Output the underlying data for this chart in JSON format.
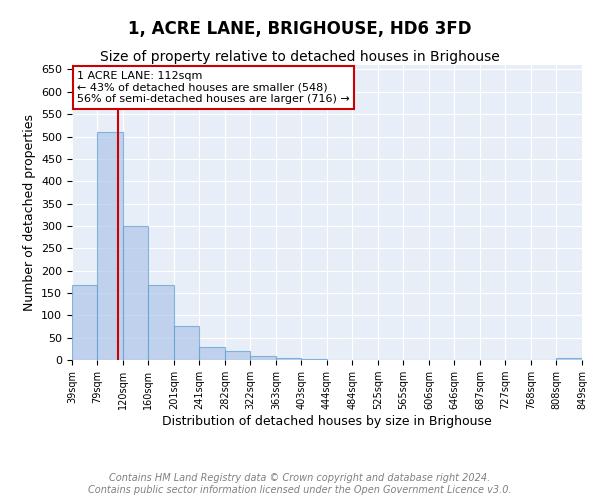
{
  "title": "1, ACRE LANE, BRIGHOUSE, HD6 3FD",
  "subtitle": "Size of property relative to detached houses in Brighouse",
  "xlabel": "Distribution of detached houses by size in Brighouse",
  "ylabel": "Number of detached properties",
  "bar_edges": [
    39,
    79,
    120,
    160,
    201,
    241,
    282,
    322,
    363,
    403,
    444,
    484,
    525,
    565,
    606,
    646,
    687,
    727,
    768,
    808,
    849
  ],
  "bar_heights": [
    167,
    510,
    300,
    167,
    75,
    30,
    20,
    10,
    5,
    3,
    1,
    1,
    0,
    0,
    0,
    0,
    0,
    0,
    0,
    5
  ],
  "bar_color": "#aec6e8",
  "bar_edge_color": "#5a9fd4",
  "bar_alpha": 0.7,
  "property_size": 112,
  "vline_color": "#cc0000",
  "annotation_text": "1 ACRE LANE: 112sqm\n← 43% of detached houses are smaller (548)\n56% of semi-detached houses are larger (716) →",
  "annotation_box_color": "white",
  "annotation_border_color": "#cc0000",
  "ylim": [
    0,
    660
  ],
  "yticks": [
    0,
    50,
    100,
    150,
    200,
    250,
    300,
    350,
    400,
    450,
    500,
    550,
    600,
    650
  ],
  "background_color": "#e8eef7",
  "grid_color": "white",
  "title_fontsize": 12,
  "subtitle_fontsize": 10,
  "xlabel_fontsize": 9,
  "ylabel_fontsize": 9,
  "footer_text": "Contains HM Land Registry data © Crown copyright and database right 2024.\nContains public sector information licensed under the Open Government Licence v3.0.",
  "footer_fontsize": 7
}
